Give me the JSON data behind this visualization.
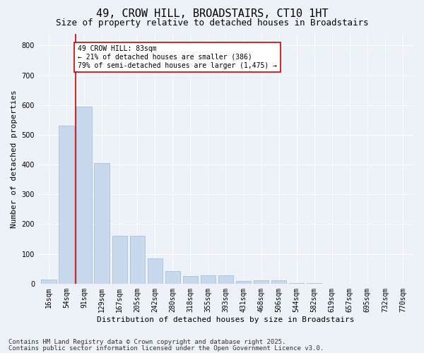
{
  "title": "49, CROW HILL, BROADSTAIRS, CT10 1HT",
  "subtitle": "Size of property relative to detached houses in Broadstairs",
  "xlabel": "Distribution of detached houses by size in Broadstairs",
  "ylabel": "Number of detached properties",
  "categories": [
    "16sqm",
    "54sqm",
    "91sqm",
    "129sqm",
    "167sqm",
    "205sqm",
    "242sqm",
    "280sqm",
    "318sqm",
    "355sqm",
    "393sqm",
    "431sqm",
    "468sqm",
    "506sqm",
    "544sqm",
    "582sqm",
    "619sqm",
    "657sqm",
    "695sqm",
    "732sqm",
    "770sqm"
  ],
  "values": [
    15,
    530,
    595,
    405,
    160,
    160,
    85,
    42,
    25,
    28,
    28,
    8,
    12,
    12,
    2,
    1,
    0,
    0,
    0,
    0,
    0
  ],
  "bar_color": "#c9d9ed",
  "bar_edge_color": "#a0b8d0",
  "vline_x": 1.5,
  "vline_color": "#cc0000",
  "annotation_text": "49 CROW HILL: 83sqm\n← 21% of detached houses are smaller (386)\n79% of semi-detached houses are larger (1,475) →",
  "annotation_box_color": "#ffffff",
  "annotation_box_edge": "#cc0000",
  "ylim": [
    0,
    840
  ],
  "yticks": [
    0,
    100,
    200,
    300,
    400,
    500,
    600,
    700,
    800
  ],
  "footer_line1": "Contains HM Land Registry data © Crown copyright and database right 2025.",
  "footer_line2": "Contains public sector information licensed under the Open Government Licence v3.0.",
  "bg_color": "#edf2f8",
  "plot_bg_color": "#edf2f8",
  "title_fontsize": 11,
  "subtitle_fontsize": 9,
  "axis_label_fontsize": 8,
  "tick_fontsize": 7,
  "annotation_fontsize": 7,
  "footer_fontsize": 6.5
}
